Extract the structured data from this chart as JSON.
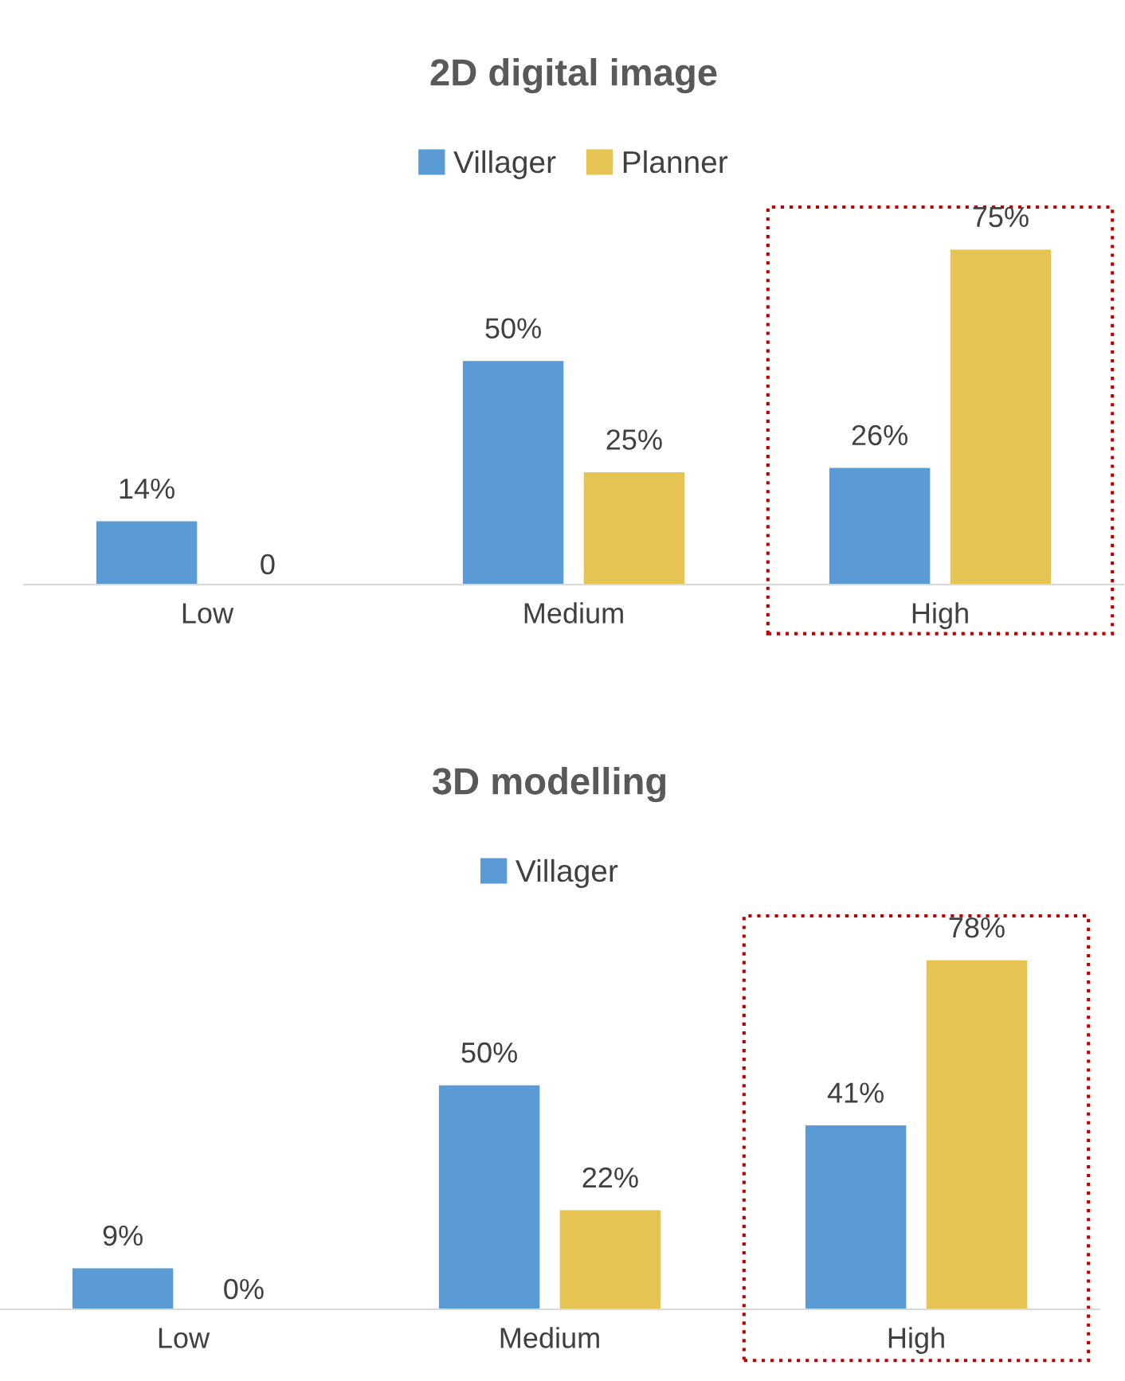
{
  "chart_data": [
    {
      "type": "bar",
      "title": "2D digital image",
      "categories": [
        "Low",
        "Medium",
        "High"
      ],
      "series": [
        {
          "name": "Villager",
          "color": "#5b9bd5",
          "values": [
            14,
            50,
            26
          ],
          "value_labels": [
            "14%",
            "50%",
            "26%"
          ]
        },
        {
          "name": "Planner",
          "color": "#e5c454",
          "values": [
            0,
            25,
            75
          ],
          "value_labels": [
            "0",
            "25%",
            "75%"
          ]
        }
      ],
      "tick_labels": "x",
      "legend": "top",
      "grid": false
    },
    {
      "type": "bar",
      "title": "3D modelling",
      "categories": [
        "Low",
        "Medium",
        "High"
      ],
      "series": [
        {
          "name": "Villager",
          "color": "#5b9bd5",
          "values": [
            9,
            50,
            41
          ],
          "value_labels": [
            "9%",
            "50%",
            "41%"
          ]
        },
        {
          "color": "#e5c454",
          "values": [
            0,
            22,
            78
          ],
          "value_labels": [
            "0%",
            "22%",
            "78%"
          ]
        }
      ],
      "tick_labels": "x",
      "legend": "top",
      "grid": false
    }
  ]
}
